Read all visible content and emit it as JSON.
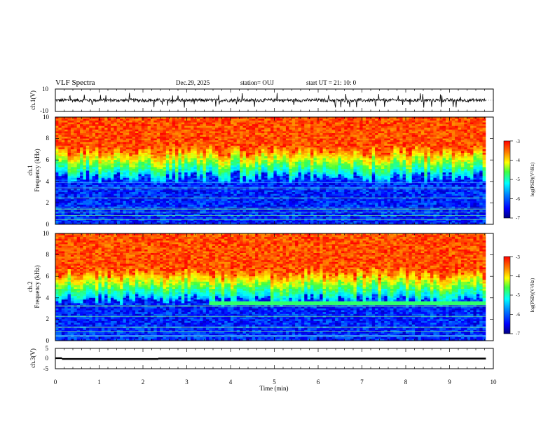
{
  "header": {
    "title": "VLF Spectra",
    "date": "Dec.29, 2025",
    "station": "station= OUJ",
    "start": "start  UT =   21: 10: 0"
  },
  "chart_data": [
    {
      "type": "line",
      "panel": "ch1-waveform",
      "ylabel": "ch.1(V)",
      "ylim": [
        -10,
        10
      ],
      "yticks": [
        "10",
        "-10"
      ],
      "xlim": [
        0,
        10
      ],
      "baseline": 0,
      "noise_amplitude": 1.5,
      "spike_amplitude": 6
    },
    {
      "type": "heatmap",
      "panel": "ch1-spectrogram",
      "ylabel_top": "ch.1",
      "ylabel": "Frequency (kHz)",
      "ylim": [
        0,
        10
      ],
      "yticks": [
        "0",
        "2",
        "4",
        "6",
        "8",
        "10"
      ],
      "xlim": [
        0,
        9.83
      ],
      "boundary_khz": 5.6,
      "colorbar": {
        "label": "log(PSD)(V²/Hz)",
        "range": [
          -7,
          -3
        ],
        "ticks": [
          "-3",
          "-4",
          "-5",
          "-6",
          "-7"
        ]
      }
    },
    {
      "type": "heatmap",
      "panel": "ch2-spectrogram",
      "ylabel_top": "ch.2",
      "ylabel": "Frequency (kHz)",
      "ylim": [
        0,
        10
      ],
      "yticks": [
        "0",
        "2",
        "4",
        "6",
        "8",
        "10"
      ],
      "xlim": [
        0,
        9.83
      ],
      "boundary_khz": 5.0,
      "band_khz": 3.5,
      "band_start_min": 3.5,
      "colorbar": {
        "label": "log(PSD)(V²/Hz)",
        "range": [
          -7,
          -3
        ],
        "ticks": [
          "-3",
          "-4",
          "-5",
          "-6",
          "-7"
        ]
      }
    },
    {
      "type": "line",
      "panel": "ch3-waveform",
      "ylabel": "ch.3(V)",
      "ylim": [
        -5,
        5
      ],
      "yticks": [
        "5",
        "0",
        "-5"
      ],
      "xlim": [
        0,
        10
      ],
      "xlabel": "Time  (min)",
      "xticks": [
        "0",
        "1",
        "2",
        "3",
        "4",
        "5",
        "6",
        "7",
        "8",
        "9",
        "10"
      ],
      "levels": [
        {
          "x_start": 0,
          "x_end": 0.15,
          "y": 0.2
        },
        {
          "x_start": 0.15,
          "x_end": 2.35,
          "y": -0.2
        },
        {
          "x_start": 2.35,
          "x_end": 9.83,
          "y": 0
        }
      ]
    }
  ]
}
